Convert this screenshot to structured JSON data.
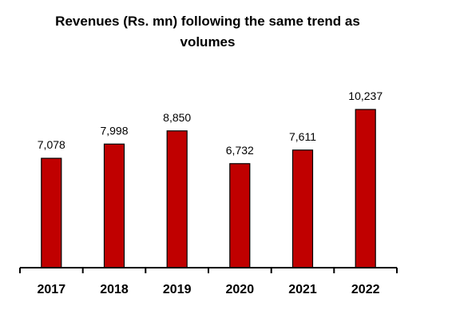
{
  "chart_data": {
    "type": "bar",
    "title": "Revenues (Rs. mn) following the same trend as volumes",
    "xlabel": "",
    "ylabel": "",
    "categories": [
      "2017",
      "2018",
      "2019",
      "2020",
      "2021",
      "2022"
    ],
    "values": [
      7078,
      7998,
      8850,
      6732,
      7611,
      10237
    ],
    "value_labels": [
      "7,078",
      "7,998",
      "8,850",
      "6,732",
      "7,611",
      "10,237"
    ],
    "ylim": [
      0,
      11000
    ],
    "grid": false,
    "legend": "none",
    "bar_color": "#c00000",
    "bar_stroke": "#000000"
  }
}
